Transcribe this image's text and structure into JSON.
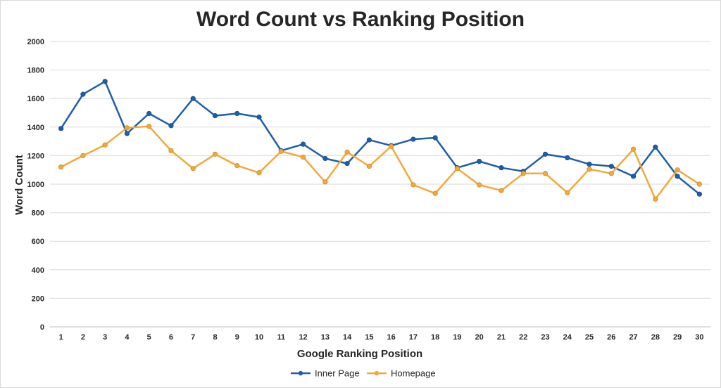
{
  "chart_data": {
    "type": "line",
    "title": "Word Count vs Ranking Position",
    "xlabel": "Google Ranking Position",
    "ylabel": "Word Count",
    "ylim": [
      0,
      2000
    ],
    "yticks": [
      0,
      200,
      400,
      600,
      800,
      1000,
      1200,
      1400,
      1600,
      1800,
      2000
    ],
    "grid": true,
    "legend": "bottom",
    "categories": [
      "1",
      "2",
      "3",
      "4",
      "5",
      "6",
      "7",
      "8",
      "9",
      "10",
      "11",
      "12",
      "13",
      "14",
      "15",
      "16",
      "17",
      "18",
      "19",
      "20",
      "21",
      "22",
      "23",
      "24",
      "25",
      "26",
      "27",
      "28",
      "29",
      "30"
    ],
    "series": [
      {
        "name": "Inner Page",
        "color": "#1f5ea8",
        "values": [
          1390,
          1630,
          1720,
          1355,
          1495,
          1410,
          1600,
          1480,
          1495,
          1470,
          1235,
          1280,
          1180,
          1145,
          1310,
          1270,
          1315,
          1325,
          1115,
          1160,
          1115,
          1090,
          1210,
          1185,
          1140,
          1125,
          1055,
          1260,
          1055,
          930
        ]
      },
      {
        "name": "Homepage",
        "color": "#f2a93b",
        "values": [
          1120,
          1200,
          1275,
          1395,
          1405,
          1235,
          1110,
          1210,
          1130,
          1080,
          1230,
          1190,
          1015,
          1225,
          1125,
          1265,
          995,
          935,
          1110,
          995,
          955,
          1075,
          1075,
          940,
          1105,
          1075,
          1245,
          895,
          1100,
          1000
        ]
      }
    ]
  }
}
